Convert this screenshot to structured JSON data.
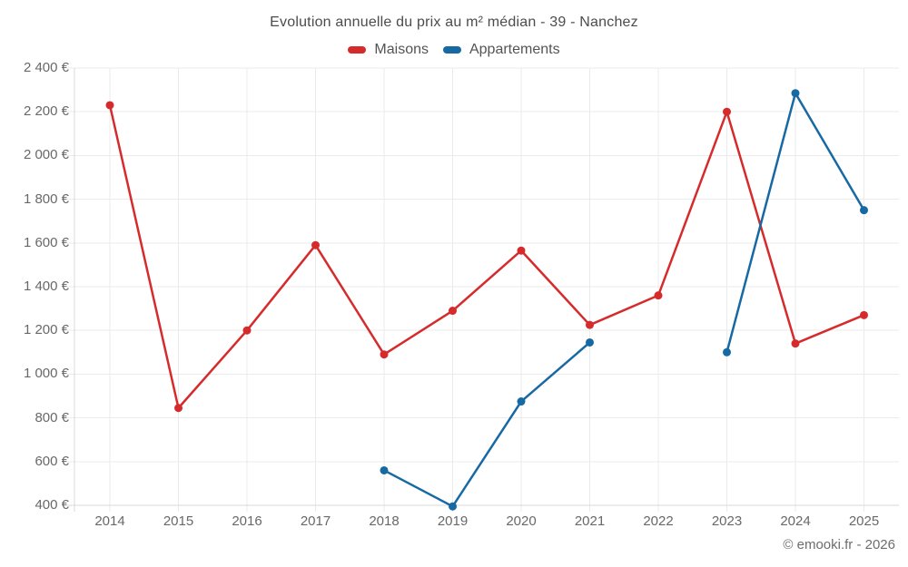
{
  "title": "Evolution annuelle du prix au m² médian - 39 - Nanchez",
  "footer": "© emooki.fr - 2026",
  "legend": [
    {
      "label": "Maisons",
      "color": "#d62b2c"
    },
    {
      "label": "Appartements",
      "color": "#1769a3"
    }
  ],
  "colors": {
    "maisons": "#d62b2c",
    "appartements": "#1769a3",
    "grid": "#ebebeb",
    "axis": "#d8d8d8",
    "title_text": "#4c4c4c",
    "axis_text": "#686868"
  },
  "chart_data": {
    "type": "line",
    "title": "Evolution annuelle du prix au m² médian - 39 - Nanchez",
    "xlabel": "",
    "ylabel": "",
    "categories": [
      "2014",
      "2015",
      "2016",
      "2017",
      "2018",
      "2019",
      "2020",
      "2021",
      "2022",
      "2023",
      "2024",
      "2025"
    ],
    "series": [
      {
        "name": "Maisons",
        "color": "#d62b2c",
        "values": [
          2230,
          845,
          1200,
          1590,
          1090,
          1290,
          1565,
          1225,
          1360,
          2200,
          1140,
          1270
        ]
      },
      {
        "name": "Appartements",
        "color": "#1769a3",
        "values": [
          null,
          null,
          null,
          null,
          560,
          395,
          875,
          1145,
          null,
          1100,
          2285,
          1750
        ]
      }
    ],
    "ylim": [
      400,
      2400
    ],
    "ytick_step": 200,
    "ytick_labels": [
      "400 €",
      "600 €",
      "800 €",
      "1 000 €",
      "1 200 €",
      "1 400 €",
      "1 600 €",
      "1 800 €",
      "2 000 €",
      "2 200 €",
      "2 400 €"
    ],
    "grid": true,
    "legend_position": "top-center",
    "marker": "circle",
    "gap_note": "Appartements has no data 2014-2017 and 2022"
  }
}
